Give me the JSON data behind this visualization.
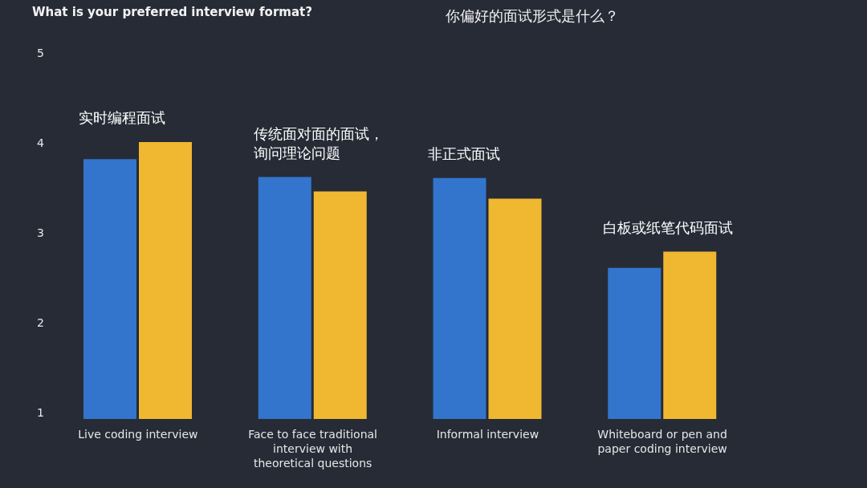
{
  "chart_data": {
    "type": "bar",
    "title": "What is your preferred interview format?",
    "subtitle": "你偏好的面试形式是什么？",
    "categories": [
      "Live coding interview",
      "Face to face traditional interview with theoretical questions",
      "Informal interview",
      "Whiteboard or pen and paper coding interview"
    ],
    "series": [
      {
        "color": "#3375cc",
        "values": [
          3.82,
          3.62,
          3.61,
          2.61
        ]
      },
      {
        "color": "#f0b731",
        "values": [
          4.01,
          3.46,
          3.38,
          2.79
        ]
      }
    ],
    "ylim": [
      0.93,
      5
    ],
    "yticks": [
      1,
      2,
      3,
      4,
      5
    ],
    "grid": false,
    "legend": false,
    "annotations": [
      "实时编程面试",
      "传统面对面的面试，询问理论问题",
      "非正式面试",
      "白板或纸笔代码面试"
    ]
  }
}
